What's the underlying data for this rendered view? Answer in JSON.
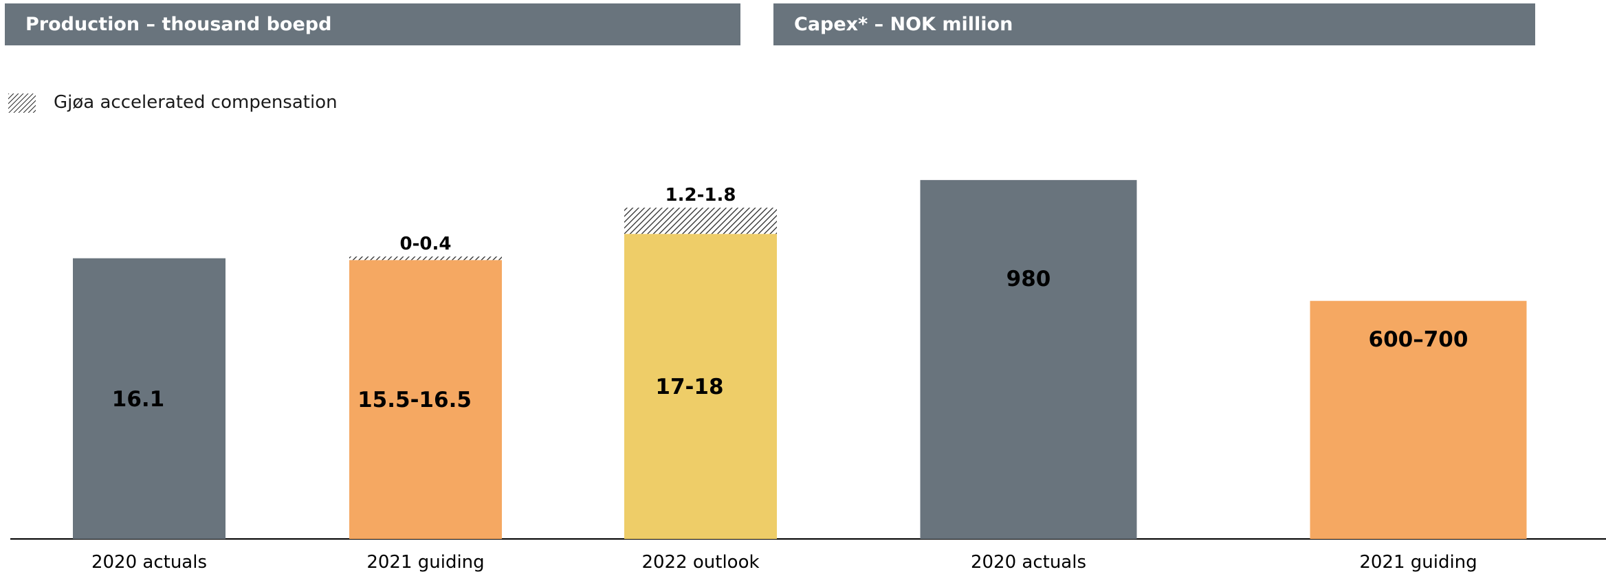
{
  "colors": {
    "header_bg": "#69747d",
    "actuals": "#69747d",
    "guiding": "#f5a862",
    "outlook": "#eecd68",
    "axis": "#000000"
  },
  "legend": {
    "label": "Gjøa  accelerated compensation",
    "icon": "hatched-pattern-icon"
  },
  "chart_data": [
    {
      "type": "bar",
      "stacked": true,
      "title": "Production  – thousand boepd",
      "categories": [
        "2020  actuals",
        "2021  guiding",
        "2022  outlook"
      ],
      "series": [
        {
          "values": [
            16.1,
            16.0,
            17.5
          ],
          "labels": [
            "16.1",
            "15.5-16.5",
            "17-18"
          ]
        },
        {
          "name": "Gjøa  accelerated compensation",
          "values": [
            0,
            0.2,
            1.5
          ],
          "labels": [
            "",
            "0-0.4",
            "1.2-1.8"
          ]
        }
      ],
      "ylim": [
        0,
        25
      ]
    },
    {
      "type": "bar",
      "title": "Capex* – NOK million",
      "categories": [
        "2020  actuals",
        "2021  guiding"
      ],
      "values": [
        980,
        650
      ],
      "labels": [
        "980",
        "600–700"
      ],
      "ylim": [
        0,
        1190
      ]
    }
  ]
}
